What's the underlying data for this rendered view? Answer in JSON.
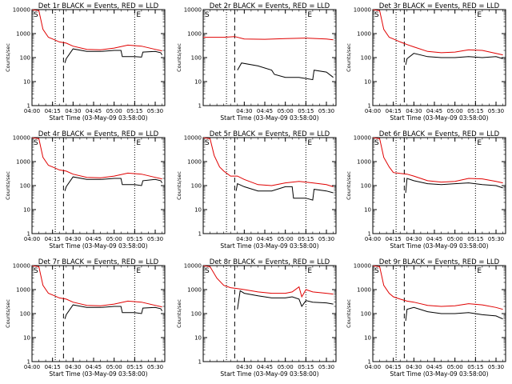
{
  "colors": {
    "events": "#000000",
    "lld": "#e00000"
  },
  "chart_data": [
    {
      "type": "line",
      "title": "Det 1r  BLACK = Events, RED = LLD",
      "xlabel": "Start Time (03-May-09 03:58:00)",
      "ylabel": "Counts/sec",
      "x_ticks": [
        "04:00",
        "04:15",
        "04:30",
        "04:45",
        "05:00",
        "05:15",
        "05:30"
      ],
      "y_ticks": [
        "1",
        "10",
        "100",
        "1000",
        "10000"
      ],
      "yscale": "log",
      "ylim": [
        1,
        10000
      ],
      "xlim": [
        "04:00",
        "05:37"
      ],
      "markers": {
        "dotted": [
          "04:17",
          "05:15"
        ],
        "dashed": [
          "04:23"
        ]
      },
      "corner_labels": [
        "S",
        "E"
      ],
      "series": [
        {
          "name": "Events",
          "color": "black",
          "x": [
            "04:24",
            "04:25",
            "04:30",
            "04:40",
            "04:50",
            "05:00",
            "05:05",
            "05:06",
            "05:15",
            "05:20",
            "05:21",
            "05:30",
            "05:34",
            "05:35"
          ],
          "y": [
            60,
            90,
            230,
            180,
            180,
            200,
            200,
            110,
            110,
            105,
            170,
            180,
            160,
            130
          ]
        },
        {
          "name": "LLD",
          "color": "red",
          "x": [
            "04:00",
            "04:05",
            "04:08",
            "04:12",
            "04:15",
            "04:20",
            "04:25",
            "04:30",
            "04:40",
            "04:50",
            "05:00",
            "05:10",
            "05:20",
            "05:30",
            "05:35"
          ],
          "y": [
            10000,
            9000,
            1500,
            700,
            600,
            450,
            400,
            300,
            220,
            210,
            250,
            330,
            300,
            220,
            190
          ]
        }
      ]
    },
    {
      "type": "line",
      "title": "Det 2r  BLACK = Events, RED = LLD",
      "xlabel": "Start Time (03-May-09 03:58:00)",
      "ylabel": "Counts/sec",
      "x_ticks": [
        "04:30",
        "04:45",
        "05:00",
        "05:15",
        "05:30"
      ],
      "y_ticks": [
        "1",
        "10",
        "100",
        "1000",
        "10000"
      ],
      "yscale": "log",
      "ylim": [
        1,
        10000
      ],
      "xlim": [
        "04:00",
        "05:37"
      ],
      "markers": {
        "dotted": [
          "04:17",
          "05:15"
        ],
        "dashed": [
          "04:23"
        ]
      },
      "corner_labels": [
        "S",
        "E"
      ],
      "series": [
        {
          "name": "Events",
          "color": "black",
          "x": [
            "04:25",
            "04:28",
            "04:40",
            "04:50",
            "04:52",
            "05:00",
            "05:10",
            "05:20",
            "05:21",
            "05:30",
            "05:35"
          ],
          "y": [
            30,
            60,
            45,
            30,
            20,
            15,
            15,
            12,
            30,
            25,
            15
          ]
        },
        {
          "name": "LLD",
          "color": "red",
          "x": [
            "04:00",
            "04:15",
            "04:23",
            "04:30",
            "04:45",
            "05:00",
            "05:15",
            "05:30",
            "05:35"
          ],
          "y": [
            700,
            700,
            750,
            600,
            580,
            620,
            650,
            600,
            550
          ]
        }
      ]
    },
    {
      "type": "line",
      "title": "Det 3r  BLACK = Events, RED = LLD",
      "xlabel": "Start Time (03-May-09 03:58:00)",
      "ylabel": "Counts/sec",
      "x_ticks": [
        "04:00",
        "04:15",
        "04:30",
        "04:45",
        "05:00",
        "05:15",
        "05:30"
      ],
      "y_ticks": [
        "1",
        "10",
        "100",
        "1000",
        "10000"
      ],
      "yscale": "log",
      "ylim": [
        1,
        10000
      ],
      "xlim": [
        "04:00",
        "05:37"
      ],
      "markers": {
        "dotted": [
          "04:17",
          "05:15"
        ],
        "dashed": [
          "04:23"
        ]
      },
      "corner_labels": [
        "S",
        "E"
      ],
      "series": [
        {
          "name": "Events",
          "color": "black",
          "x": [
            "04:24",
            "04:25",
            "04:30",
            "04:40",
            "04:50",
            "05:00",
            "05:10",
            "05:20",
            "05:30",
            "05:35"
          ],
          "y": [
            50,
            90,
            150,
            110,
            100,
            100,
            110,
            100,
            110,
            90
          ]
        },
        {
          "name": "LLD",
          "color": "red",
          "x": [
            "04:00",
            "04:05",
            "04:08",
            "04:12",
            "04:15",
            "04:20",
            "04:25",
            "04:30",
            "04:40",
            "04:50",
            "05:00",
            "05:10",
            "05:20",
            "05:30",
            "05:35"
          ],
          "y": [
            10000,
            9000,
            1500,
            700,
            600,
            450,
            350,
            280,
            180,
            160,
            170,
            210,
            200,
            150,
            130
          ]
        }
      ]
    },
    {
      "type": "line",
      "title": "Det 4r  BLACK = Events, RED = LLD",
      "xlabel": "Start Time (03-May-09 03:58:00)",
      "ylabel": "Counts/sec",
      "x_ticks": [
        "04:00",
        "04:15",
        "04:30",
        "04:45",
        "05:00",
        "05:15",
        "05:30"
      ],
      "y_ticks": [
        "1",
        "10",
        "100",
        "1000",
        "10000"
      ],
      "yscale": "log",
      "ylim": [
        1,
        10000
      ],
      "xlim": [
        "04:00",
        "05:37"
      ],
      "markers": {
        "dotted": [
          "04:17",
          "05:15"
        ],
        "dashed": [
          "04:23"
        ]
      },
      "corner_labels": [
        "S",
        "E"
      ],
      "series": [
        {
          "name": "Events",
          "color": "black",
          "x": [
            "04:24",
            "04:25",
            "04:30",
            "04:40",
            "04:50",
            "05:00",
            "05:05",
            "05:06",
            "05:15",
            "05:20",
            "05:21",
            "05:30",
            "05:34",
            "05:35"
          ],
          "y": [
            60,
            90,
            230,
            180,
            180,
            200,
            200,
            110,
            110,
            100,
            160,
            180,
            160,
            130
          ]
        },
        {
          "name": "LLD",
          "color": "red",
          "x": [
            "04:00",
            "04:05",
            "04:08",
            "04:12",
            "04:15",
            "04:20",
            "04:25",
            "04:30",
            "04:40",
            "04:50",
            "05:00",
            "05:10",
            "05:20",
            "05:30",
            "05:35"
          ],
          "y": [
            10000,
            9000,
            1500,
            700,
            600,
            450,
            400,
            300,
            220,
            210,
            250,
            330,
            300,
            220,
            190
          ]
        }
      ]
    },
    {
      "type": "line",
      "title": "Det 5r  BLACK = Events, RED = LLD",
      "xlabel": "Start Time (03-May-09 03:58:00)",
      "ylabel": "Counts/sec",
      "x_ticks": [
        "04:30",
        "04:45",
        "05:00",
        "05:15",
        "05:30"
      ],
      "y_ticks": [
        "1",
        "10",
        "100",
        "1000",
        "10000"
      ],
      "yscale": "log",
      "ylim": [
        1,
        10000
      ],
      "xlim": [
        "04:00",
        "05:37"
      ],
      "markers": {
        "dotted": [
          "04:17",
          "05:15"
        ],
        "dashed": [
          "04:23"
        ]
      },
      "corner_labels": [
        "S",
        "E"
      ],
      "series": [
        {
          "name": "Events",
          "color": "black",
          "x": [
            "04:24",
            "04:25",
            "04:30",
            "04:40",
            "04:50",
            "05:00",
            "05:05",
            "05:06",
            "05:15",
            "05:20",
            "05:21",
            "05:30",
            "05:35"
          ],
          "y": [
            60,
            120,
            90,
            60,
            60,
            90,
            90,
            30,
            30,
            25,
            70,
            60,
            50
          ]
        },
        {
          "name": "LLD",
          "color": "red",
          "x": [
            "04:00",
            "04:05",
            "04:08",
            "04:12",
            "04:15",
            "04:20",
            "04:25",
            "04:30",
            "04:40",
            "04:50",
            "05:00",
            "05:10",
            "05:20",
            "05:30",
            "05:35"
          ],
          "y": [
            10000,
            9000,
            1800,
            600,
            400,
            250,
            250,
            180,
            110,
            100,
            130,
            150,
            130,
            110,
            90
          ]
        }
      ]
    },
    {
      "type": "line",
      "title": "Det 6r  BLACK = Events, RED = LLD",
      "xlabel": "Start Time (03-May-09 03:58:00)",
      "ylabel": "Counts/sec",
      "x_ticks": [
        "04:00",
        "04:15",
        "04:30",
        "04:45",
        "05:00",
        "05:15",
        "05:30"
      ],
      "y_ticks": [
        "1",
        "10",
        "100",
        "1000",
        "10000"
      ],
      "yscale": "log",
      "ylim": [
        1,
        10000
      ],
      "xlim": [
        "04:00",
        "05:37"
      ],
      "markers": {
        "dotted": [
          "04:17",
          "05:15"
        ],
        "dashed": [
          "04:23"
        ]
      },
      "corner_labels": [
        "S",
        "E"
      ],
      "series": [
        {
          "name": "Events",
          "color": "black",
          "x": [
            "04:24",
            "04:25",
            "04:30",
            "04:40",
            "04:50",
            "05:00",
            "05:10",
            "05:20",
            "05:30",
            "05:35"
          ],
          "y": [
            50,
            200,
            160,
            120,
            110,
            120,
            130,
            110,
            100,
            80
          ]
        },
        {
          "name": "LLD",
          "color": "red",
          "x": [
            "04:00",
            "04:05",
            "04:08",
            "04:12",
            "04:15",
            "04:20",
            "04:25",
            "04:30",
            "04:40",
            "04:50",
            "05:00",
            "05:10",
            "05:20",
            "05:30",
            "05:35"
          ],
          "y": [
            10000,
            9000,
            1500,
            600,
            350,
            320,
            300,
            250,
            160,
            140,
            150,
            200,
            190,
            150,
            130
          ]
        }
      ]
    },
    {
      "type": "line",
      "title": "Det 7r  BLACK = Events, RED = LLD",
      "xlabel": "Start Time (03-May-09 03:58:00)",
      "ylabel": "Counts/sec",
      "x_ticks": [
        "04:00",
        "04:15",
        "04:30",
        "04:45",
        "05:00",
        "05:15",
        "05:30"
      ],
      "y_ticks": [
        "1",
        "10",
        "100",
        "1000",
        "10000"
      ],
      "yscale": "log",
      "ylim": [
        1,
        10000
      ],
      "xlim": [
        "04:00",
        "05:37"
      ],
      "markers": {
        "dotted": [
          "04:17",
          "05:15"
        ],
        "dashed": [
          "04:23"
        ]
      },
      "corner_labels": [
        "S",
        "E"
      ],
      "series": [
        {
          "name": "Events",
          "color": "black",
          "x": [
            "04:24",
            "04:25",
            "04:30",
            "04:40",
            "04:50",
            "05:00",
            "05:05",
            "05:06",
            "05:15",
            "05:20",
            "05:21",
            "05:30",
            "05:34",
            "05:35"
          ],
          "y": [
            60,
            90,
            230,
            180,
            180,
            200,
            200,
            110,
            110,
            100,
            170,
            180,
            160,
            130
          ]
        },
        {
          "name": "LLD",
          "color": "red",
          "x": [
            "04:00",
            "04:05",
            "04:08",
            "04:12",
            "04:15",
            "04:20",
            "04:25",
            "04:30",
            "04:40",
            "04:50",
            "05:00",
            "05:10",
            "05:20",
            "05:30",
            "05:35"
          ],
          "y": [
            10000,
            9000,
            1500,
            700,
            600,
            450,
            400,
            300,
            220,
            210,
            250,
            330,
            300,
            220,
            190
          ]
        }
      ]
    },
    {
      "type": "line",
      "title": "Det 8r  BLACK = Events, RED = LLD",
      "xlabel": "Start Time (03-May-09 03:58:00)",
      "ylabel": "Counts/sec",
      "x_ticks": [
        "04:30",
        "04:45",
        "05:00",
        "05:15",
        "05:30"
      ],
      "y_ticks": [
        "1",
        "10",
        "100",
        "1000",
        "10000"
      ],
      "yscale": "log",
      "ylim": [
        1,
        10000
      ],
      "xlim": [
        "04:00",
        "05:37"
      ],
      "markers": {
        "dotted": [
          "04:17",
          "05:15"
        ],
        "dashed": [
          "04:23"
        ]
      },
      "corner_labels": [
        "S",
        "E"
      ],
      "series": [
        {
          "name": "Events",
          "color": "black",
          "x": [
            "04:25",
            "04:27",
            "04:30",
            "04:40",
            "04:50",
            "05:00",
            "05:05",
            "05:10",
            "05:12",
            "05:15",
            "05:20",
            "05:30",
            "05:35"
          ],
          "y": [
            150,
            900,
            700,
            550,
            450,
            450,
            500,
            400,
            200,
            350,
            300,
            280,
            250
          ]
        },
        {
          "name": "LLD",
          "color": "red",
          "x": [
            "04:00",
            "04:05",
            "04:10",
            "04:15",
            "04:20",
            "04:25",
            "04:30",
            "04:40",
            "04:50",
            "05:00",
            "05:05",
            "05:10",
            "05:12",
            "05:15",
            "05:20",
            "05:30",
            "05:35"
          ],
          "y": [
            10000,
            9000,
            3000,
            1500,
            1200,
            1100,
            1000,
            800,
            700,
            700,
            800,
            1300,
            500,
            1000,
            800,
            700,
            650
          ]
        }
      ]
    },
    {
      "type": "line",
      "title": "Det 9r  BLACK = Events, RED = LLD",
      "xlabel": "Start Time (03-May-09 03:58:00)",
      "ylabel": "Counts/sec",
      "x_ticks": [
        "04:00",
        "04:15",
        "04:30",
        "04:45",
        "05:00",
        "05:15",
        "05:30"
      ],
      "y_ticks": [
        "1",
        "10",
        "100",
        "1000",
        "10000"
      ],
      "yscale": "log",
      "ylim": [
        1,
        10000
      ],
      "xlim": [
        "04:00",
        "05:37"
      ],
      "markers": {
        "dotted": [
          "04:17",
          "05:15"
        ],
        "dashed": [
          "04:23"
        ]
      },
      "corner_labels": [
        "S",
        "E"
      ],
      "series": [
        {
          "name": "Events",
          "color": "black",
          "x": [
            "04:24",
            "04:25",
            "04:30",
            "04:40",
            "04:50",
            "05:00",
            "05:10",
            "05:20",
            "05:30",
            "05:35"
          ],
          "y": [
            50,
            150,
            180,
            120,
            100,
            100,
            110,
            90,
            80,
            60
          ]
        },
        {
          "name": "LLD",
          "color": "red",
          "x": [
            "04:00",
            "04:05",
            "04:08",
            "04:12",
            "04:15",
            "04:20",
            "04:25",
            "04:30",
            "04:40",
            "04:50",
            "05:00",
            "05:10",
            "05:20",
            "05:30",
            "05:35"
          ],
          "y": [
            10000,
            9000,
            1500,
            700,
            500,
            400,
            330,
            300,
            220,
            200,
            210,
            260,
            230,
            180,
            150
          ]
        }
      ]
    }
  ]
}
